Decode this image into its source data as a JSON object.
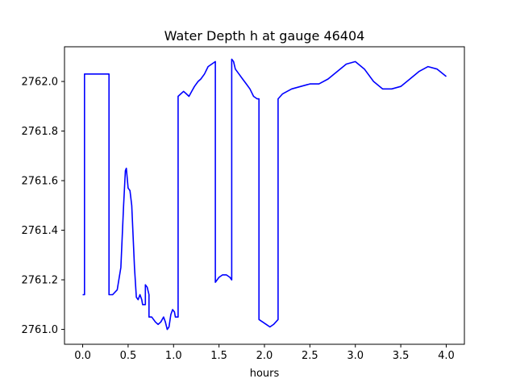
{
  "chart_data": {
    "type": "line",
    "title": "Water Depth h at gauge 46404",
    "xlabel": "hours",
    "ylabel": "",
    "xlim": [
      -0.2,
      4.2
    ],
    "ylim": [
      2760.94,
      2762.14
    ],
    "xticks": [
      0.0,
      0.5,
      1.0,
      1.5,
      2.0,
      2.5,
      3.0,
      3.5,
      4.0
    ],
    "xtick_labels": [
      "0.0",
      "0.5",
      "1.0",
      "1.5",
      "2.0",
      "2.5",
      "3.0",
      "3.5",
      "4.0"
    ],
    "yticks": [
      2761.0,
      2761.2,
      2761.4,
      2761.6,
      2761.8,
      2762.0
    ],
    "ytick_labels": [
      "2761.0",
      "2761.2",
      "2761.4",
      "2761.6",
      "2761.8",
      "2762.0"
    ],
    "grid": false,
    "series": [
      {
        "name": "",
        "color": "#0000ff",
        "points": [
          [
            0.0,
            2761.14
          ],
          [
            0.02,
            2761.14
          ],
          [
            0.02,
            2762.03
          ],
          [
            0.1,
            2762.03
          ],
          [
            0.2,
            2762.03
          ],
          [
            0.29,
            2762.03
          ],
          [
            0.29,
            2761.14
          ],
          [
            0.33,
            2761.14
          ],
          [
            0.38,
            2761.16
          ],
          [
            0.42,
            2761.25
          ],
          [
            0.45,
            2761.5
          ],
          [
            0.47,
            2761.64
          ],
          [
            0.48,
            2761.65
          ],
          [
            0.5,
            2761.57
          ],
          [
            0.52,
            2761.56
          ],
          [
            0.54,
            2761.5
          ],
          [
            0.57,
            2761.25
          ],
          [
            0.59,
            2761.13
          ],
          [
            0.61,
            2761.12
          ],
          [
            0.63,
            2761.14
          ],
          [
            0.65,
            2761.12
          ],
          [
            0.66,
            2761.1
          ],
          [
            0.69,
            2761.1
          ],
          [
            0.69,
            2761.18
          ],
          [
            0.71,
            2761.17
          ],
          [
            0.73,
            2761.14
          ],
          [
            0.73,
            2761.05
          ],
          [
            0.76,
            2761.05
          ],
          [
            0.8,
            2761.03
          ],
          [
            0.83,
            2761.02
          ],
          [
            0.86,
            2761.03
          ],
          [
            0.89,
            2761.05
          ],
          [
            0.91,
            2761.03
          ],
          [
            0.93,
            2761.0
          ],
          [
            0.95,
            2761.01
          ],
          [
            0.97,
            2761.06
          ],
          [
            0.99,
            2761.08
          ],
          [
            1.01,
            2761.07
          ],
          [
            1.02,
            2761.05
          ],
          [
            1.05,
            2761.05
          ],
          [
            1.05,
            2761.94
          ],
          [
            1.08,
            2761.95
          ],
          [
            1.11,
            2761.96
          ],
          [
            1.14,
            2761.95
          ],
          [
            1.17,
            2761.94
          ],
          [
            1.2,
            2761.96
          ],
          [
            1.23,
            2761.98
          ],
          [
            1.27,
            2762.0
          ],
          [
            1.3,
            2762.01
          ],
          [
            1.34,
            2762.03
          ],
          [
            1.38,
            2762.06
          ],
          [
            1.42,
            2762.07
          ],
          [
            1.46,
            2762.08
          ],
          [
            1.46,
            2761.19
          ],
          [
            1.5,
            2761.21
          ],
          [
            1.54,
            2761.22
          ],
          [
            1.58,
            2761.22
          ],
          [
            1.62,
            2761.21
          ],
          [
            1.64,
            2761.2
          ],
          [
            1.64,
            2762.09
          ],
          [
            1.66,
            2762.08
          ],
          [
            1.68,
            2762.05
          ],
          [
            1.72,
            2762.03
          ],
          [
            1.76,
            2762.01
          ],
          [
            1.8,
            2761.99
          ],
          [
            1.84,
            2761.97
          ],
          [
            1.88,
            2761.94
          ],
          [
            1.92,
            2761.93
          ],
          [
            1.94,
            2761.93
          ],
          [
            1.94,
            2761.04
          ],
          [
            1.98,
            2761.03
          ],
          [
            2.02,
            2761.02
          ],
          [
            2.06,
            2761.01
          ],
          [
            2.1,
            2761.02
          ],
          [
            2.15,
            2761.04
          ],
          [
            2.15,
            2761.93
          ],
          [
            2.2,
            2761.95
          ],
          [
            2.25,
            2761.96
          ],
          [
            2.3,
            2761.97
          ],
          [
            2.4,
            2761.98
          ],
          [
            2.5,
            2761.99
          ],
          [
            2.6,
            2761.99
          ],
          [
            2.7,
            2762.01
          ],
          [
            2.8,
            2762.04
          ],
          [
            2.9,
            2762.07
          ],
          [
            3.0,
            2762.08
          ],
          [
            3.1,
            2762.05
          ],
          [
            3.2,
            2762.0
          ],
          [
            3.3,
            2761.97
          ],
          [
            3.4,
            2761.97
          ],
          [
            3.5,
            2761.98
          ],
          [
            3.6,
            2762.01
          ],
          [
            3.7,
            2762.04
          ],
          [
            3.8,
            2762.06
          ],
          [
            3.9,
            2762.05
          ],
          [
            4.0,
            2762.02
          ]
        ]
      }
    ]
  }
}
